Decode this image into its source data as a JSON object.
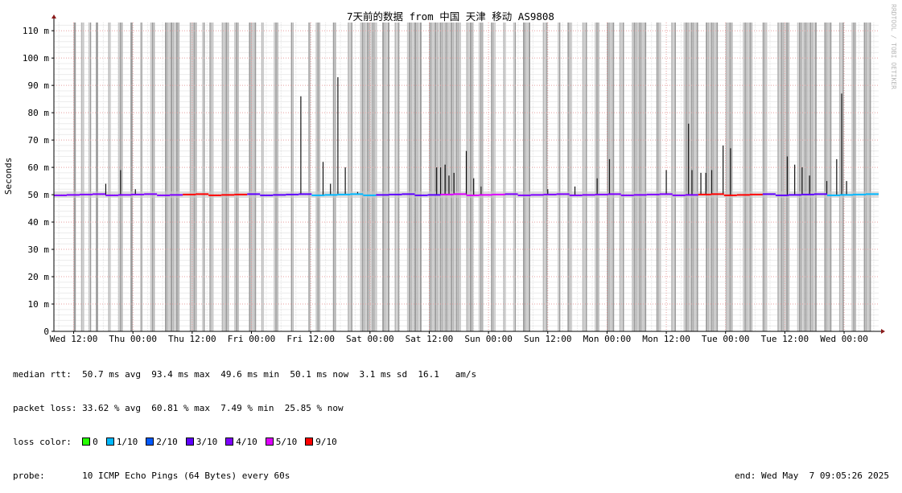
{
  "chart_data": {
    "type": "line",
    "title": "7天前的数据 from 中国 天津 移动 AS9808",
    "ylabel": "Seconds",
    "watermark": "RRDTOOL / TOBI OETIKER",
    "yticks": [
      {
        "v": 0,
        "label": "0"
      },
      {
        "v": 10,
        "label": "10 m"
      },
      {
        "v": 20,
        "label": "20 m"
      },
      {
        "v": 30,
        "label": "30 m"
      },
      {
        "v": 40,
        "label": "40 m"
      },
      {
        "v": 50,
        "label": "50 m"
      },
      {
        "v": 60,
        "label": "60 m"
      },
      {
        "v": 70,
        "label": "70 m"
      },
      {
        "v": 80,
        "label": "80 m"
      },
      {
        "v": 90,
        "label": "90 m"
      },
      {
        "v": 100,
        "label": "100 m"
      },
      {
        "v": 110,
        "label": "110 m"
      }
    ],
    "ylim": [
      0,
      113
    ],
    "xlim_hours": [
      -4,
      163
    ],
    "xticks": [
      {
        "h": 0,
        "label": "Wed 12:00"
      },
      {
        "h": 12,
        "label": "Thu 00:00"
      },
      {
        "h": 24,
        "label": "Thu 12:00"
      },
      {
        "h": 36,
        "label": "Fri 00:00"
      },
      {
        "h": 48,
        "label": "Fri 12:00"
      },
      {
        "h": 60,
        "label": "Sat 00:00"
      },
      {
        "h": 72,
        "label": "Sat 12:00"
      },
      {
        "h": 84,
        "label": "Sun 00:00"
      },
      {
        "h": 96,
        "label": "Sun 12:00"
      },
      {
        "h": 108,
        "label": "Mon 00:00"
      },
      {
        "h": 120,
        "label": "Mon 12:00"
      },
      {
        "h": 132,
        "label": "Tue 00:00"
      },
      {
        "h": 144,
        "label": "Tue 12:00"
      },
      {
        "h": 156,
        "label": "Wed 00:00"
      }
    ],
    "median_baseline": 50,
    "spikes": [
      {
        "h": 6.5,
        "v": 54
      },
      {
        "h": 9.5,
        "v": 59
      },
      {
        "h": 12.5,
        "v": 52
      },
      {
        "h": 46,
        "v": 86
      },
      {
        "h": 50.5,
        "v": 62
      },
      {
        "h": 52,
        "v": 54
      },
      {
        "h": 53.5,
        "v": 93
      },
      {
        "h": 55,
        "v": 60
      },
      {
        "h": 57.5,
        "v": 51
      },
      {
        "h": 73.5,
        "v": 60
      },
      {
        "h": 74.3,
        "v": 60
      },
      {
        "h": 75.2,
        "v": 61
      },
      {
        "h": 76,
        "v": 57
      },
      {
        "h": 77,
        "v": 58
      },
      {
        "h": 79.5,
        "v": 66
      },
      {
        "h": 81,
        "v": 56
      },
      {
        "h": 82.5,
        "v": 53
      },
      {
        "h": 96,
        "v": 52
      },
      {
        "h": 101.5,
        "v": 53
      },
      {
        "h": 106,
        "v": 56
      },
      {
        "h": 108.5,
        "v": 63
      },
      {
        "h": 120,
        "v": 59
      },
      {
        "h": 124.5,
        "v": 76
      },
      {
        "h": 125.2,
        "v": 59
      },
      {
        "h": 127,
        "v": 58
      },
      {
        "h": 128,
        "v": 58
      },
      {
        "h": 129.2,
        "v": 59
      },
      {
        "h": 131.5,
        "v": 68
      },
      {
        "h": 133,
        "v": 67
      },
      {
        "h": 144.5,
        "v": 64
      },
      {
        "h": 146,
        "v": 61
      },
      {
        "h": 147.5,
        "v": 60
      },
      {
        "h": 149,
        "v": 57
      },
      {
        "h": 152.5,
        "v": 55
      },
      {
        "h": 154.5,
        "v": 63
      },
      {
        "h": 155.5,
        "v": 87
      },
      {
        "h": 156.5,
        "v": 55
      }
    ],
    "loss_bands": [
      {
        "from": 0.0,
        "to": 0.5
      },
      {
        "from": 1.5,
        "to": 2.2
      },
      {
        "from": 3.0,
        "to": 3.6
      },
      {
        "from": 4.5,
        "to": 5.0
      },
      {
        "from": 7.0,
        "to": 7.6
      },
      {
        "from": 9.0,
        "to": 10.0
      },
      {
        "from": 11.5,
        "to": 12.0
      },
      {
        "from": 13.5,
        "to": 14.0
      },
      {
        "from": 15.5,
        "to": 16.5
      },
      {
        "from": 18.5,
        "to": 21.5
      },
      {
        "from": 23.5,
        "to": 25.0
      },
      {
        "from": 26.0,
        "to": 26.6
      },
      {
        "from": 27.5,
        "to": 28.4
      },
      {
        "from": 30.0,
        "to": 31.5
      },
      {
        "from": 32.5,
        "to": 33.5
      },
      {
        "from": 35.5,
        "to": 37.0
      },
      {
        "from": 38.0,
        "to": 38.6
      },
      {
        "from": 40.5,
        "to": 41.5
      },
      {
        "from": 44.0,
        "to": 44.6
      },
      {
        "from": 47.5,
        "to": 48.0
      },
      {
        "from": 49.0,
        "to": 50.0
      },
      {
        "from": 52.5,
        "to": 53.2
      },
      {
        "from": 55.5,
        "to": 56.5
      },
      {
        "from": 58.0,
        "to": 61.5
      },
      {
        "from": 62.5,
        "to": 64.0
      },
      {
        "from": 65.0,
        "to": 66.0
      },
      {
        "from": 67.5,
        "to": 70.5
      },
      {
        "from": 72.0,
        "to": 78.5
      },
      {
        "from": 79.5,
        "to": 81.0
      },
      {
        "from": 82.0,
        "to": 83.0
      },
      {
        "from": 84.5,
        "to": 85.5
      },
      {
        "from": 87.0,
        "to": 87.6
      },
      {
        "from": 89.0,
        "to": 89.6
      },
      {
        "from": 91.0,
        "to": 92.5
      },
      {
        "from": 95.0,
        "to": 96.0
      },
      {
        "from": 98.0,
        "to": 98.6
      },
      {
        "from": 100.0,
        "to": 101.0
      },
      {
        "from": 103.0,
        "to": 104.0
      },
      {
        "from": 105.5,
        "to": 106.5
      },
      {
        "from": 108.0,
        "to": 109.5
      },
      {
        "from": 110.5,
        "to": 111.5
      },
      {
        "from": 113.0,
        "to": 116.0
      },
      {
        "from": 118.0,
        "to": 119.0
      },
      {
        "from": 121.0,
        "to": 122.0
      },
      {
        "from": 123.5,
        "to": 126.5
      },
      {
        "from": 128.0,
        "to": 130.5
      },
      {
        "from": 132.0,
        "to": 133.5
      },
      {
        "from": 135.5,
        "to": 137.5
      },
      {
        "from": 139.5,
        "to": 140.5
      },
      {
        "from": 142.5,
        "to": 145.0
      },
      {
        "from": 146.5,
        "to": 150.5
      },
      {
        "from": 152.0,
        "to": 153.5
      },
      {
        "from": 155.0,
        "to": 156.0
      },
      {
        "from": 157.5,
        "to": 158.5
      },
      {
        "from": 160.0,
        "to": 161.5
      }
    ]
  },
  "stats": {
    "rtt_label": "median rtt:",
    "rtt_values": "50.7 ms avg  93.4 ms max  49.6 ms min  50.1 ms now  3.1 ms sd  16.1   am/s",
    "loss_label": "packet loss:",
    "loss_values": "33.62 % avg  60.81 % max  7.49 % min  25.85 % now",
    "color_label": "loss color:",
    "colors": [
      {
        "label": "0",
        "color": "#26ff00"
      },
      {
        "label": "1/10",
        "color": "#00b8ff"
      },
      {
        "label": "2/10",
        "color": "#0059ff"
      },
      {
        "label": "3/10",
        "color": "#5e00ff"
      },
      {
        "label": "4/10",
        "color": "#7e00ff"
      },
      {
        "label": "5/10",
        "color": "#dd00ff"
      },
      {
        "label": "9/10",
        "color": "#ff0000"
      }
    ],
    "probe_label": "probe:",
    "probe_value": "10 ICMP Echo Pings (64 Bytes) every 60s",
    "end_value": "end: Wed May  7 09:05:26 2025"
  }
}
